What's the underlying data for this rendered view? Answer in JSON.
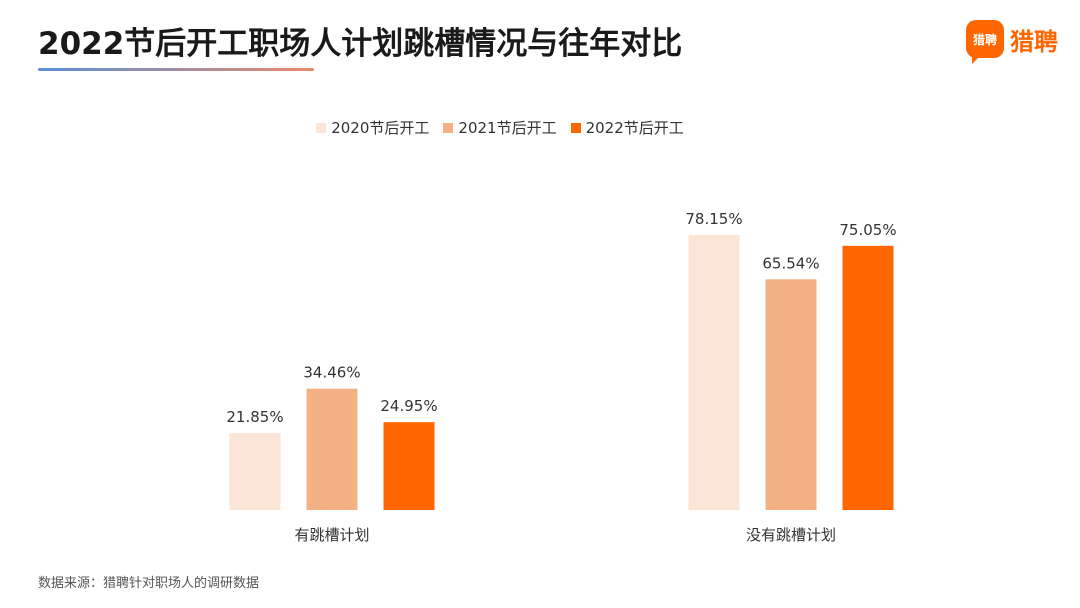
{
  "header": {
    "title": "2022节后开工职场人计划跳槽情况与往年对比",
    "logo_text": "猎聘",
    "logo_mark_text": "猎聘"
  },
  "footer": {
    "source": "数据来源：猎聘针对职场人的调研数据"
  },
  "colors": {
    "series_2020": "#fbe5d6",
    "series_2021": "#f4b183",
    "series_2022": "#ff6600",
    "accent": "#ff6600"
  },
  "chart_data": {
    "type": "bar",
    "title": "",
    "xlabel": "",
    "ylabel": "",
    "ylim": [
      0,
      100
    ],
    "grid": false,
    "legend_position": "top",
    "categories": [
      "有跳槽计划",
      "没有跳槽计划"
    ],
    "series": [
      {
        "name": "2020节后开工",
        "values": [
          21.85,
          78.15
        ],
        "labels": [
          "21.85%",
          "78.15%"
        ]
      },
      {
        "name": "2021节后开工",
        "values": [
          34.46,
          65.54
        ],
        "labels": [
          "34.46%",
          "65.54%"
        ]
      },
      {
        "name": "2022节后开工",
        "values": [
          24.95,
          75.05
        ],
        "labels": [
          "24.95%",
          "75.05%"
        ]
      }
    ]
  }
}
